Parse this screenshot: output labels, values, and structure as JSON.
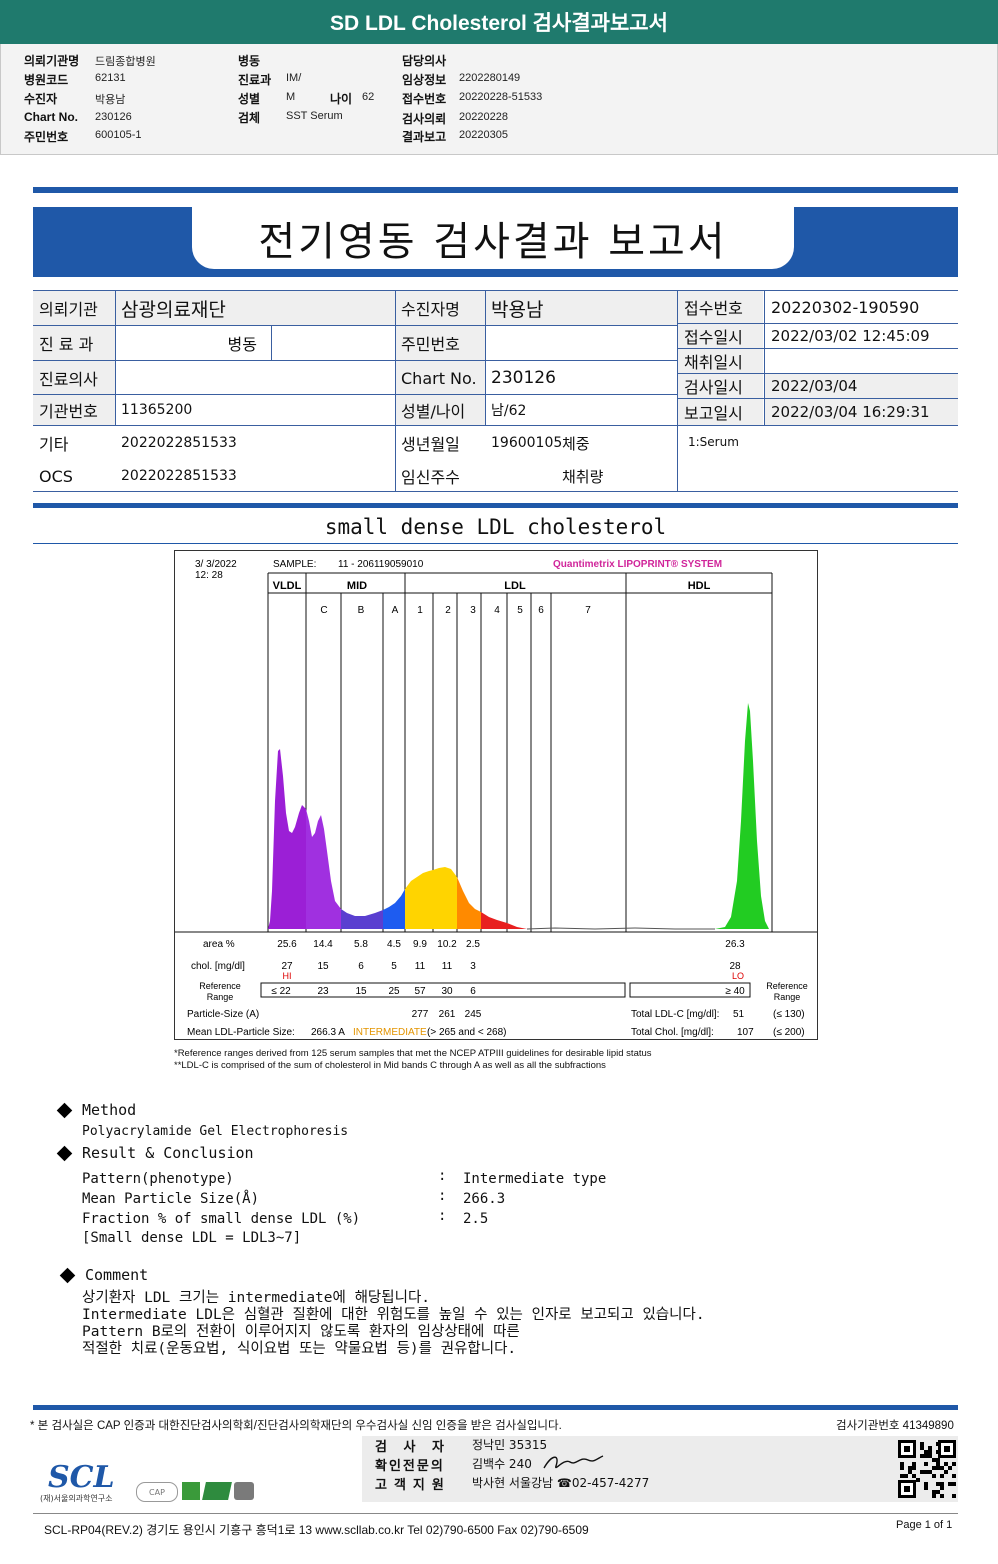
{
  "header": {
    "title": "SD LDL Cholesterol 검사결과보고서",
    "fields": [
      {
        "k": "의뢰기관명",
        "v": "드림종합병원"
      },
      {
        "k": "병원코드",
        "v": "62131"
      },
      {
        "k": "수진자",
        "v": "박용남"
      },
      {
        "k": "Chart No.",
        "v": "230126"
      },
      {
        "k": "주민번호",
        "v": "600105-1"
      },
      {
        "k": "병동",
        "v": ""
      },
      {
        "k": "진료과",
        "v": "IM/"
      },
      {
        "k": "성별",
        "v": "M"
      },
      {
        "k": "나이",
        "v": "62"
      },
      {
        "k": "검체",
        "v": "SST Serum"
      },
      {
        "k": "담당의사",
        "v": ""
      },
      {
        "k": "임상정보",
        "v": "2202280149"
      },
      {
        "k": "접수번호",
        "v": "20220228-51533"
      },
      {
        "k": "검사의뢰",
        "v": "20220228"
      },
      {
        "k": "결과보고",
        "v": "20220305"
      }
    ]
  },
  "report": {
    "title": "전기영동 검사결과 보고서",
    "table": {
      "inst_label": "의뢰기관",
      "inst_value": "삼광의료재단",
      "dept_label": "진 료 과",
      "dept_value": "병동",
      "doctor_label": "진료의사",
      "doctor_value": "",
      "code_label": "기관번호",
      "code_value": "11365200",
      "etc_label": "기타",
      "etc_value": "2022022851533",
      "ocs_label": "OCS",
      "ocs_value": "2022022851533",
      "patient_label": "수진자명",
      "patient_value": "박용남",
      "rrn_label": "주민번호",
      "rrn_value": "",
      "chart_label": "Chart No.",
      "chart_value": "230126",
      "sexage_label": "성별/나이",
      "sexage_value": "남/62",
      "birth_label": "생년월일",
      "birth_value": "19600105",
      "weight_label": "체중",
      "preg_label": "임신주수",
      "volume_label": "채취량",
      "recvno_label": "접수번호",
      "recvno_value": "20220302-190590",
      "recvdate_label": "접수일시",
      "recvdate_value": "2022/03/02 12:45:09",
      "colldate_label": "채취일시",
      "colldate_value": "",
      "testdate_label": "검사일시",
      "testdate_value": "2022/03/04",
      "repdate_label": "보고일시",
      "repdate_value": "2022/03/04 16:29:31",
      "specimen": "1:Serum"
    }
  },
  "section_title": "small dense LDL cholesterol",
  "chart_data": {
    "type": "area",
    "date": "3/  3/2022",
    "time": "12: 28",
    "sample_label": "SAMPLE:",
    "sample_value": "11 - 206119059010",
    "brand": "Quantimetrix LIPOPRINT® SYSTEM",
    "groups": [
      "VLDL",
      "MID",
      "LDL",
      "HDL"
    ],
    "bands": [
      "C",
      "B",
      "A",
      "1",
      "2",
      "3",
      "4",
      "5",
      "6",
      "7"
    ],
    "columns": [
      "VLDL",
      "C",
      "B",
      "A",
      "1",
      "2",
      "3",
      "HDL"
    ],
    "area_label": "area %",
    "area": [
      25.6,
      14.4,
      5.8,
      4.5,
      9.9,
      10.2,
      2.5,
      26.3
    ],
    "chol_label": "chol. [mg/dl]",
    "chol": [
      27,
      15,
      6,
      5,
      11,
      11,
      3,
      28
    ],
    "flags": {
      "vldl": "HI",
      "hdl": "LO"
    },
    "ref_label": "Reference Range",
    "ref": [
      "≤ 22",
      "23",
      "15",
      "25",
      "57",
      "30",
      "6"
    ],
    "ref_hdl": "≥ 40",
    "ref_right_label": "Reference Range",
    "particle_label": "Particle-Size (A)",
    "particle": [
      277,
      261,
      245
    ],
    "mean_label": "Mean LDL-Particle Size:",
    "mean_value": "266.3 A",
    "mean_class": "INTERMEDIATE",
    "mean_range": "(> 265 and < 268)",
    "total_ldl_label": "Total LDL-C [mg/dl]:",
    "total_ldl": 51,
    "total_ldl_ref": "(≤ 130)",
    "total_chol_label": "Total Chol. [mg/dl]:",
    "total_chol": 107,
    "total_chol_ref": "(≤ 200)",
    "note1": "*Reference ranges derived from 125 serum samples that met the NCEP ATPIII guidelines for desirable lipid status",
    "note2": "**LDL-C is comprised of the sum of cholesterol in Mid bands C through A as well as all the subfractions",
    "colors": {
      "vldl": "#9b1fd6",
      "c": "#a030e0",
      "b": "#5a3fd0",
      "a": "#1e5cf0",
      "ldl1": "#ffd400",
      "ldl2": "#ff8a00",
      "ldl3": "#e82020",
      "hdl": "#22cc22"
    }
  },
  "method": {
    "heading": "Method",
    "text": "Polyacrylamide Gel Electrophoresis"
  },
  "result": {
    "heading": "Result & Conclusion",
    "rows": [
      {
        "k": "Pattern(phenotype)",
        "v": "Intermediate type"
      },
      {
        "k": "Mean Particle Size(Å)",
        "v": "266.3"
      },
      {
        "k": "Fraction % of small dense LDL (%)",
        "v": "2.5"
      }
    ],
    "note": "[Small dense LDL = LDL3~7]"
  },
  "comment": {
    "heading": "Comment",
    "lines": [
      "상기환자 LDL 크기는 intermediate에 해당됩니다.",
      "Intermediate LDL은 심혈관 질환에 대한 위험도를 높일 수 있는 인자로 보고되고 있습니다.",
      "Pattern B로의 전환이 이루어지지 않도록 환자의 임상상태에 따른",
      "적절한 치료(운동요법, 식이요법 또는 약물요법 등)를 권유합니다."
    ]
  },
  "footer": {
    "notice": "* 본 검사실은 CAP 인증과 대한진단검사의학회/진단검사의학재단의 우수검사실 신임 인증을 받은 검사실입니다.",
    "lab_no": "검사기관번호 41349890",
    "tester_label": "검 사 자",
    "tester": "정낙민 35315",
    "reviewer_label": "확인전문의",
    "reviewer": "김백수 240",
    "support_label": "고객지원",
    "support": "박사현 서울강남 ☎02-457-4277",
    "logo": "SCL",
    "logo_sub": "(재)서울의과학연구소",
    "address": "SCL-RP04(REV.2)  경기도 용인시 기흥구 흥덕1로 13  www.scllab.co.kr  Tel 02)790-6500  Fax 02)790-6509",
    "page": "Page 1 of 1"
  }
}
